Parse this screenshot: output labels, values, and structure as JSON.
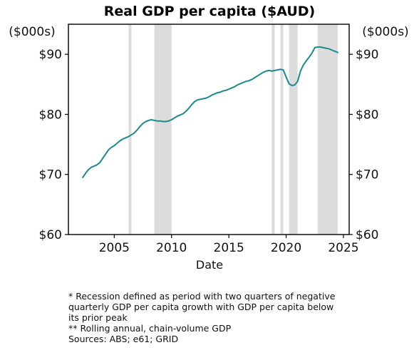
{
  "chart_data": {
    "type": "line",
    "title": "Real GDP per capita ($AUD)",
    "xlabel": "Date",
    "ylabel_left": "($000s)",
    "ylabel_right": "($000s)",
    "xlim": [
      2001.0,
      2025.5
    ],
    "ylim": [
      60,
      95
    ],
    "x_ticks": [
      2005,
      2010,
      2015,
      2020,
      2025
    ],
    "y_ticks": [
      60,
      70,
      80,
      90
    ],
    "y_tick_labels": [
      "$60",
      "$70",
      "$80",
      "$90"
    ],
    "grid": false,
    "line_color": "#1a8a8a",
    "recession_color": "#dcdcdc",
    "recession_periods": [
      [
        2006.25,
        2006.5
      ],
      [
        2008.5,
        2010.0
      ],
      [
        2018.75,
        2019.0
      ],
      [
        2019.5,
        2019.75
      ],
      [
        2020.25,
        2021.0
      ],
      [
        2022.75,
        2024.5
      ]
    ],
    "series": [
      {
        "x": [
          2002.25,
          2002.5,
          2002.75,
          2003.0,
          2003.25,
          2003.5,
          2003.75,
          2004.0,
          2004.25,
          2004.5,
          2004.75,
          2005.0,
          2005.25,
          2005.5,
          2005.75,
          2006.0,
          2006.25,
          2006.5,
          2006.75,
          2007.0,
          2007.25,
          2007.5,
          2007.75,
          2008.0,
          2008.25,
          2008.5,
          2008.75,
          2009.0,
          2009.25,
          2009.5,
          2009.75,
          2010.0,
          2010.25,
          2010.5,
          2010.75,
          2011.0,
          2011.25,
          2011.5,
          2011.75,
          2012.0,
          2012.25,
          2012.5,
          2012.75,
          2013.0,
          2013.25,
          2013.5,
          2013.75,
          2014.0,
          2014.25,
          2014.5,
          2014.75,
          2015.0,
          2015.25,
          2015.5,
          2015.75,
          2016.0,
          2016.25,
          2016.5,
          2016.75,
          2017.0,
          2017.25,
          2017.5,
          2017.75,
          2018.0,
          2018.25,
          2018.5,
          2018.75,
          2019.0,
          2019.25,
          2019.5,
          2019.75,
          2020.0,
          2020.25,
          2020.5,
          2020.75,
          2021.0,
          2021.25,
          2021.5,
          2021.75,
          2022.0,
          2022.25,
          2022.5,
          2022.75,
          2023.0,
          2023.25,
          2023.5,
          2023.75,
          2024.0,
          2024.25,
          2024.5
        ],
        "y": [
          69.5,
          70.2,
          70.8,
          71.2,
          71.4,
          71.6,
          72.0,
          72.7,
          73.4,
          74.1,
          74.5,
          74.8,
          75.2,
          75.6,
          75.9,
          76.1,
          76.3,
          76.6,
          76.9,
          77.4,
          78.0,
          78.5,
          78.8,
          79.0,
          79.1,
          79.0,
          78.9,
          78.9,
          78.8,
          78.8,
          78.9,
          79.1,
          79.4,
          79.7,
          79.9,
          80.1,
          80.5,
          81.0,
          81.6,
          82.1,
          82.4,
          82.5,
          82.6,
          82.7,
          82.9,
          83.2,
          83.4,
          83.6,
          83.7,
          83.9,
          84.0,
          84.2,
          84.4,
          84.6,
          84.9,
          85.1,
          85.3,
          85.5,
          85.6,
          85.8,
          86.1,
          86.4,
          86.7,
          87.0,
          87.2,
          87.3,
          87.2,
          87.3,
          87.4,
          87.5,
          87.4,
          86.2,
          85.1,
          84.8,
          84.9,
          85.5,
          87.2,
          88.2,
          88.9,
          89.5,
          90.2,
          91.1,
          91.2,
          91.2,
          91.1,
          91.0,
          90.9,
          90.7,
          90.5,
          90.3
        ]
      }
    ],
    "footnotes": [
      "* Recession defined as period with two quarters of negative",
      "quarterly GDP per capita growth with GDP per capita below",
      "its prior peak",
      "** Rolling annual, chain-volume GDP",
      "Sources: ABS; e61; GRID"
    ]
  }
}
